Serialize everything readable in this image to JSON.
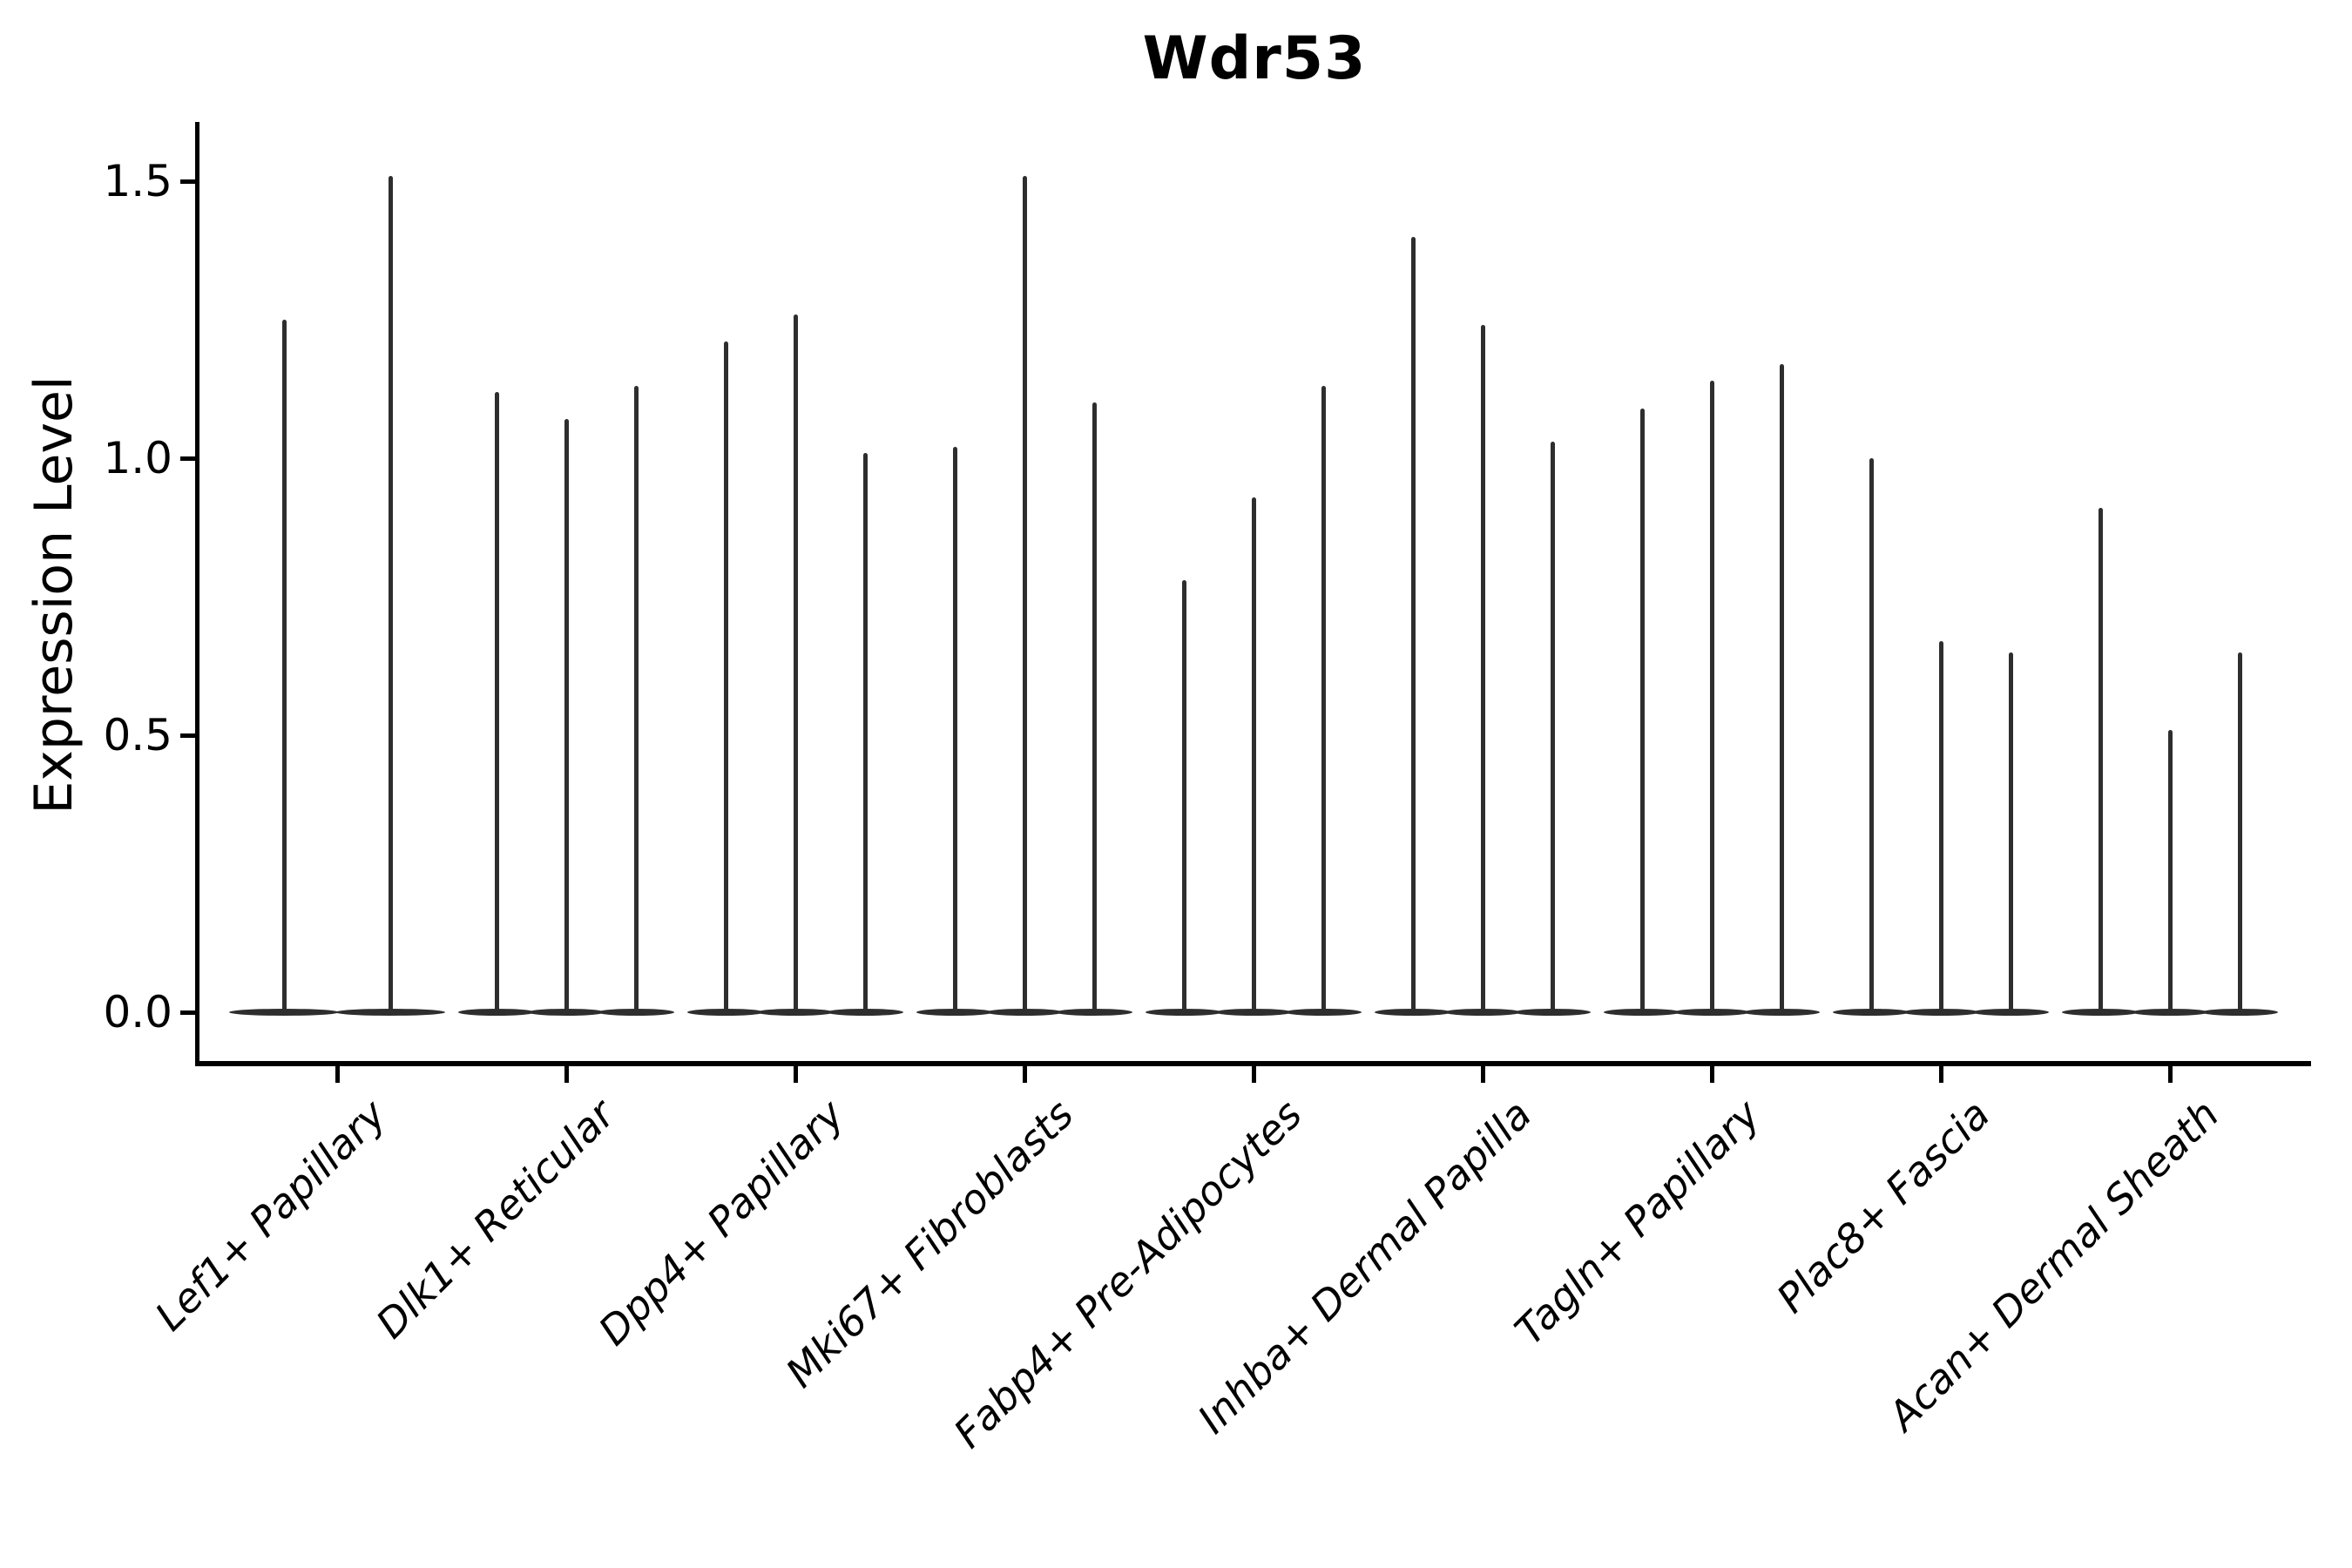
{
  "title": "Wdr53",
  "style": {
    "violin_color": "#2e2e2e",
    "axis_color": "#000000",
    "background": "#ffffff"
  },
  "chart_data": {
    "type": "violin",
    "title": "Wdr53",
    "xlabel": "",
    "ylabel": "Expression Level",
    "ylim": [
      -0.09,
      1.6
    ],
    "y_ticks": [
      0.0,
      0.5,
      1.0,
      1.5
    ],
    "y_tick_labels": [
      "0.0",
      "0.5",
      "1.0",
      "1.5"
    ],
    "x_tick_rotation": 45,
    "grid": "off",
    "legend": "none",
    "categories": [
      "Lef1+ Papillary",
      "Dlk1+ Reticular",
      "Dpp4+ Papillary",
      "Mki67+ Fibroblasts",
      "Fabp4+ Pre-Adipocytes",
      "Inhba+ Dermal Papilla",
      "Tagln+ Papillary",
      "Plac8+ Fascia",
      "Acan+ Dermal Sheath"
    ],
    "series": [
      {
        "category": "Lef1+ Papillary",
        "violin_peaks": [
          1.25,
          1.51
        ]
      },
      {
        "category": "Dlk1+ Reticular",
        "violin_peaks": [
          1.12,
          1.07,
          1.13
        ]
      },
      {
        "category": "Dpp4+ Papillary",
        "violin_peaks": [
          1.21,
          1.26,
          1.01
        ]
      },
      {
        "category": "Mki67+ Fibroblasts",
        "violin_peaks": [
          1.02,
          1.51,
          1.1
        ]
      },
      {
        "category": "Fabp4+ Pre-Adipocytes",
        "violin_peaks": [
          0.78,
          0.93,
          1.13
        ]
      },
      {
        "category": "Inhba+ Dermal Papilla",
        "violin_peaks": [
          1.4,
          1.24,
          1.03
        ]
      },
      {
        "category": "Tagln+ Papillary",
        "violin_peaks": [
          1.09,
          1.14,
          1.17
        ]
      },
      {
        "category": "Plac8+ Fascia",
        "violin_peaks": [
          1.0,
          0.67,
          0.65
        ]
      },
      {
        "category": "Acan+ Dermal Sheath",
        "violin_peaks": [
          0.91,
          0.51,
          0.65
        ]
      }
    ],
    "description": "Violin plot of gene expression; each category shows very narrow spike-shaped violins collapsed at 0 with thin peaks reaching the listed maxima."
  }
}
